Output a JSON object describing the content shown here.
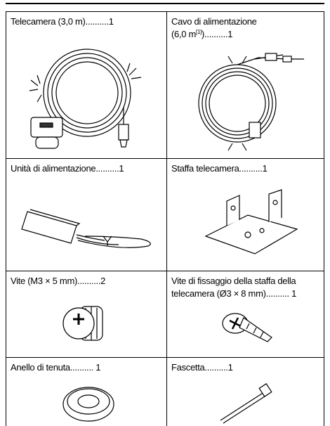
{
  "table": {
    "rows": [
      [
        {
          "lines": [
            "Telecamera (3,0 m)..........1"
          ]
        },
        {
          "lines": [
            "Cavo di alimentazione"
          ],
          "line2": {
            "before": "(6,0 m",
            "sup": "[1]",
            "after": ")..........1"
          }
        }
      ],
      [
        {
          "lines": [
            "Unità di alimentazione..........1"
          ]
        },
        {
          "lines": [
            "Staffa telecamera..........1"
          ]
        }
      ],
      [
        {
          "lines": [
            "Vite (M3 × 5 mm)..........2"
          ]
        },
        {
          "lines": [
            "Vite di fissaggio della staffa della",
            "telecamera (Ø3 × 8 mm).......... 1"
          ]
        }
      ],
      [
        {
          "lines": [
            "Anello di tenuta.......... 1"
          ]
        },
        {
          "lines": [
            "Fascetta..........1"
          ]
        }
      ]
    ]
  }
}
